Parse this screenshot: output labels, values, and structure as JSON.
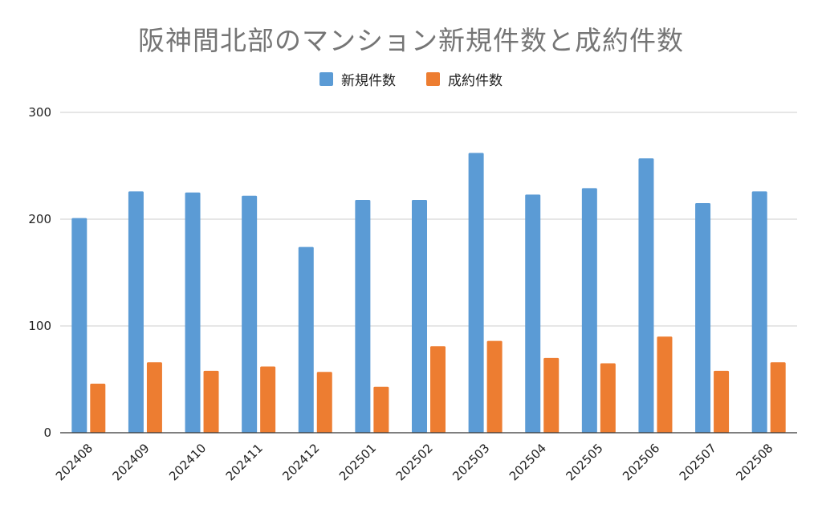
{
  "chart_data": {
    "type": "bar",
    "title": "阪神間北部のマンション新規件数と成約件数",
    "xlabel": "",
    "ylabel": "",
    "ylim": [
      0,
      300
    ],
    "yticks": [
      "0",
      "100",
      "200",
      "300"
    ],
    "grid": true,
    "legend_position": "top-center",
    "categories": [
      "202408",
      "202409",
      "202410",
      "202411",
      "202412",
      "202501",
      "202502",
      "202503",
      "202504",
      "202505",
      "202506",
      "202507",
      "202508"
    ],
    "series": [
      {
        "name": "新規件数",
        "color": "#5b9bd5",
        "values": [
          201,
          226,
          225,
          222,
          174,
          218,
          218,
          262,
          223,
          229,
          257,
          215,
          226
        ]
      },
      {
        "name": "成約件数",
        "color": "#ed7d31",
        "values": [
          46,
          66,
          58,
          62,
          57,
          43,
          81,
          86,
          70,
          65,
          90,
          58,
          66
        ]
      }
    ]
  }
}
